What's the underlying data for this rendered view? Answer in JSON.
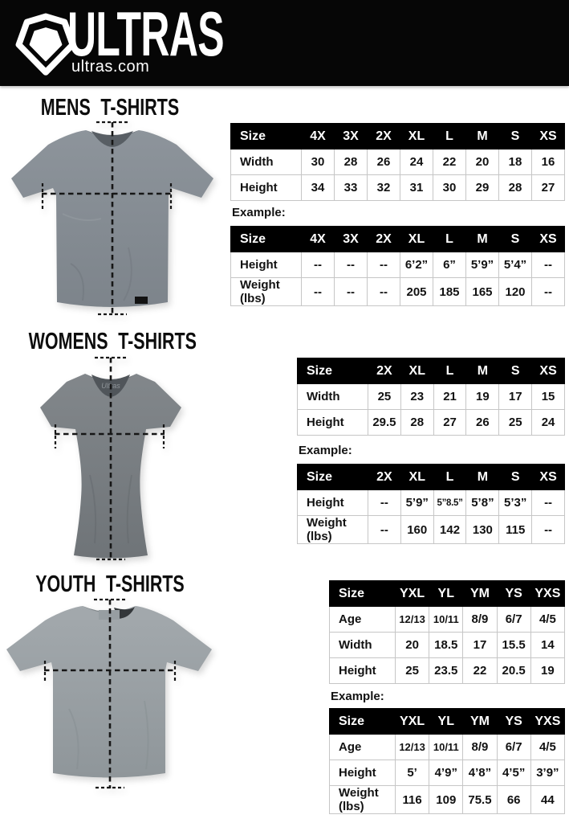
{
  "header": {
    "brand": "ULTRAS",
    "site": "ultras.com",
    "logo_icon": "pentagon-shield-icon",
    "bg_color": "#060606"
  },
  "colors": {
    "table_header_bg": "#000000",
    "table_border": "#c6c6c6",
    "text": "#121212",
    "mens_shirt": "#878e95",
    "womens_shirt": "#787d82",
    "youth_shirt": "#9aa1a6"
  },
  "sections": [
    {
      "id": "mens",
      "title": "MENS T-SHIRTS",
      "shirt_image": "mens-tshirt-photo",
      "example_label": "Example:",
      "size_table": {
        "header": [
          "Size",
          "4X",
          "3X",
          "2X",
          "XL",
          "L",
          "M",
          "S",
          "XS"
        ],
        "rows": [
          [
            "Width",
            "30",
            "28",
            "26",
            "24",
            "22",
            "20",
            "18",
            "16"
          ],
          [
            "Height",
            "34",
            "33",
            "32",
            "31",
            "30",
            "29",
            "28",
            "27"
          ]
        ]
      },
      "example_table": {
        "header": [
          "Size",
          "4X",
          "3X",
          "2X",
          "XL",
          "L",
          "M",
          "S",
          "XS"
        ],
        "rows": [
          [
            "Height",
            "--",
            "--",
            "--",
            "6’2”",
            "6”",
            "5’9”",
            "5’4”",
            "--"
          ],
          [
            "Weight (lbs)",
            "--",
            "--",
            "--",
            "205",
            "185",
            "165",
            "120",
            "--"
          ]
        ]
      }
    },
    {
      "id": "womens",
      "title": "WOMENS T-SHIRTS",
      "shirt_image": "womens-tshirt-photo",
      "example_label": "Example:",
      "size_table": {
        "header": [
          "Size",
          "2X",
          "XL",
          "L",
          "M",
          "S",
          "XS"
        ],
        "rows": [
          [
            "Width",
            "25",
            "23",
            "21",
            "19",
            "17",
            "15"
          ],
          [
            "Height",
            "29.5",
            "28",
            "27",
            "26",
            "25",
            "24"
          ]
        ]
      },
      "example_table": {
        "header": [
          "Size",
          "2X",
          "XL",
          "L",
          "M",
          "S",
          "XS"
        ],
        "rows": [
          [
            "Height",
            "--",
            "5’9”",
            "5”8.5”",
            "5’8”",
            "5’3”",
            "--"
          ],
          [
            "Weight (lbs)",
            "--",
            "160",
            "142",
            "130",
            "115",
            "--"
          ]
        ]
      }
    },
    {
      "id": "youth",
      "title": "YOUTH T-SHIRTS",
      "shirt_image": "youth-tshirt-photo",
      "example_label": "Example:",
      "size_table": {
        "header": [
          "Size",
          "YXL",
          "YL",
          "YM",
          "YS",
          "YXS"
        ],
        "rows": [
          [
            "Age",
            "12/13",
            "10/11",
            "8/9",
            "6/7",
            "4/5"
          ],
          [
            "Width",
            "20",
            "18.5",
            "17",
            "15.5",
            "14"
          ],
          [
            "Height",
            "25",
            "23.5",
            "22",
            "20.5",
            "19"
          ]
        ]
      },
      "example_table": {
        "header": [
          "Size",
          "YXL",
          "YL",
          "YM",
          "YS",
          "YXS"
        ],
        "rows": [
          [
            "Age",
            "12/13",
            "10/11",
            "8/9",
            "6/7",
            "4/5"
          ],
          [
            "Height",
            "5’",
            "4’9”",
            "4’8”",
            "4’5”",
            "3’9”"
          ],
          [
            "Weight (lbs)",
            "116",
            "109",
            "75.5",
            "66",
            "44"
          ]
        ]
      }
    }
  ]
}
